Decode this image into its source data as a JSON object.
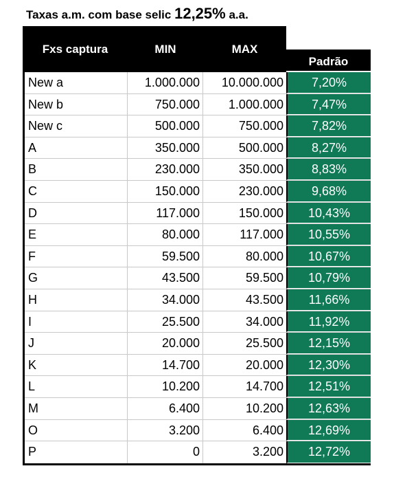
{
  "title": {
    "prefix": "Taxas a.m. com base selic ",
    "rate": "12,25%",
    "suffix": " a.a."
  },
  "header": {
    "col_faixa": "Fxs captura",
    "col_min": "MIN",
    "col_max": "MAX",
    "col_padrao": "Padrão"
  },
  "colors": {
    "header_bg": "#000000",
    "rate_bg": "#0f7a55",
    "grid": "#c8c8c8"
  },
  "rows": [
    {
      "faixa": "New a",
      "min": "1.000.000",
      "max": "10.000.000",
      "padrao": "7,20%"
    },
    {
      "faixa": "New b",
      "min": "750.000",
      "max": "1.000.000",
      "padrao": "7,47%"
    },
    {
      "faixa": "New c",
      "min": "500.000",
      "max": "750.000",
      "padrao": "7,82%"
    },
    {
      "faixa": "A",
      "min": "350.000",
      "max": "500.000",
      "padrao": "8,27%"
    },
    {
      "faixa": "B",
      "min": "230.000",
      "max": "350.000",
      "padrao": "8,83%"
    },
    {
      "faixa": "C",
      "min": "150.000",
      "max": "230.000",
      "padrao": "9,68%"
    },
    {
      "faixa": "D",
      "min": "117.000",
      "max": "150.000",
      "padrao": "10,43%"
    },
    {
      "faixa": "E",
      "min": "80.000",
      "max": "117.000",
      "padrao": "10,55%"
    },
    {
      "faixa": "F",
      "min": "59.500",
      "max": "80.000",
      "padrao": "10,67%"
    },
    {
      "faixa": "G",
      "min": "43.500",
      "max": "59.500",
      "padrao": "10,79%"
    },
    {
      "faixa": "H",
      "min": "34.000",
      "max": "43.500",
      "padrao": "11,66%"
    },
    {
      "faixa": "I",
      "min": "25.500",
      "max": "34.000",
      "padrao": "11,92%"
    },
    {
      "faixa": "J",
      "min": "20.000",
      "max": "25.500",
      "padrao": "12,15%"
    },
    {
      "faixa": "K",
      "min": "14.700",
      "max": "20.000",
      "padrao": "12,30%"
    },
    {
      "faixa": "L",
      "min": "10.200",
      "max": "14.700",
      "padrao": "12,51%"
    },
    {
      "faixa": "M",
      "min": "6.400",
      "max": "10.200",
      "padrao": "12,63%"
    },
    {
      "faixa": "O",
      "min": "3.200",
      "max": "6.400",
      "padrao": "12,69%"
    },
    {
      "faixa": "P",
      "min": "0",
      "max": "3.200",
      "padrao": "12,72%"
    }
  ]
}
